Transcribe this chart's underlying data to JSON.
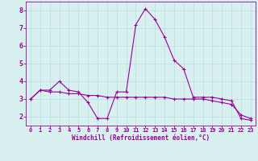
{
  "line1_x": [
    0,
    1,
    2,
    3,
    4,
    5,
    6,
    7,
    8,
    9,
    10,
    11,
    12,
    13,
    14,
    15,
    16,
    17,
    18,
    19,
    20,
    21,
    22,
    23
  ],
  "line1_y": [
    3.0,
    3.5,
    3.5,
    4.0,
    3.5,
    3.4,
    2.8,
    1.9,
    1.9,
    3.4,
    3.4,
    7.2,
    8.1,
    7.5,
    6.5,
    5.2,
    4.7,
    3.1,
    3.1,
    3.1,
    3.0,
    2.9,
    1.9,
    1.8
  ],
  "line2_x": [
    0,
    1,
    2,
    3,
    4,
    5,
    6,
    7,
    8,
    9,
    10,
    11,
    12,
    13,
    14,
    15,
    16,
    17,
    18,
    19,
    20,
    21,
    22,
    23
  ],
  "line2_y": [
    3.0,
    3.5,
    3.4,
    3.4,
    3.3,
    3.3,
    3.2,
    3.2,
    3.1,
    3.1,
    3.1,
    3.1,
    3.1,
    3.1,
    3.1,
    3.0,
    3.0,
    3.0,
    3.0,
    2.9,
    2.8,
    2.7,
    2.1,
    1.9
  ],
  "color": "#990099",
  "bg_color": "#d8f0f0",
  "xlabel": "Windchill (Refroidissement éolien,°C)",
  "ylim": [
    1.5,
    8.5
  ],
  "xlim": [
    -0.5,
    23.5
  ],
  "yticks": [
    2,
    3,
    4,
    5,
    6,
    7,
    8
  ],
  "xticks": [
    0,
    1,
    2,
    3,
    4,
    5,
    6,
    7,
    8,
    9,
    10,
    11,
    12,
    13,
    14,
    15,
    16,
    17,
    18,
    19,
    20,
    21,
    22,
    23
  ],
  "grid_color": "#b8dede",
  "linewidth": 0.8,
  "markersize": 3,
  "tick_labelsize": 5,
  "xlabel_fontsize": 5.5
}
